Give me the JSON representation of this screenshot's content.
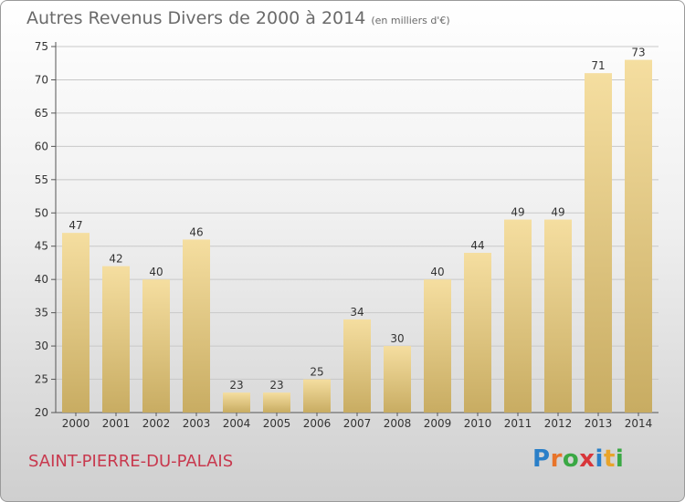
{
  "chart_data": {
    "type": "bar",
    "title": "Autres Revenus Divers de 2000 à 2014",
    "unit_label": "(en milliers d'€)",
    "categories": [
      "2000",
      "2001",
      "2002",
      "2003",
      "2004",
      "2005",
      "2006",
      "2007",
      "2008",
      "2009",
      "2010",
      "2011",
      "2012",
      "2013",
      "2014"
    ],
    "values": [
      47,
      42,
      40,
      46,
      23,
      23,
      25,
      34,
      30,
      40,
      44,
      49,
      49,
      71,
      73
    ],
    "ylim": [
      20,
      75
    ],
    "yticks": [
      20,
      25,
      30,
      35,
      40,
      45,
      50,
      55,
      60,
      65,
      70,
      75
    ],
    "grid": true,
    "colors": {
      "bar_top": "#f5dea0",
      "bar_bottom": "#c8ac62",
      "grid": "#c8c8c8",
      "text": "#333333"
    }
  },
  "place_name": "SAINT-PIERRE-DU-PALAIS",
  "logo": {
    "letters": [
      "P",
      "r",
      "o",
      "x",
      "i",
      "t",
      "i"
    ],
    "colors": [
      "#2a7fc8",
      "#e8742a",
      "#3aa844",
      "#d8363a",
      "#2a7fc8",
      "#e8a42a",
      "#3aa844"
    ]
  }
}
